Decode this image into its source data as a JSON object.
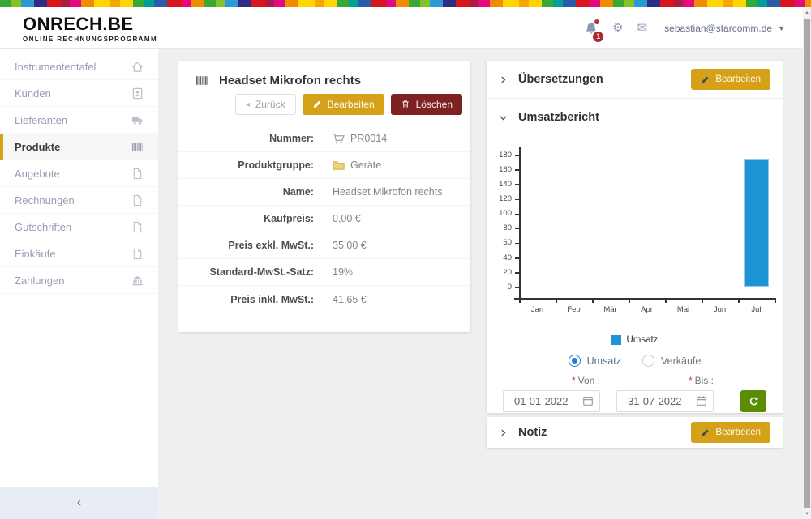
{
  "header": {
    "logo_title": "ONRECH.BE",
    "logo_subtitle": "ONLINE RECHNUNGSPROGRAMM",
    "notification_count": "1",
    "user_email": "sebastian@starcomm.de"
  },
  "sidebar": {
    "items": [
      {
        "label": "Instrumententafel",
        "icon": "home-icon",
        "active": false
      },
      {
        "label": "Kunden",
        "icon": "address-book-icon",
        "active": false
      },
      {
        "label": "Lieferanten",
        "icon": "truck-icon",
        "active": false
      },
      {
        "label": "Produkte",
        "icon": "barcode-icon",
        "active": true
      },
      {
        "label": "Angebote",
        "icon": "file-icon",
        "active": false
      },
      {
        "label": "Rechnungen",
        "icon": "file-icon",
        "active": false
      },
      {
        "label": "Gutschriften",
        "icon": "file-icon",
        "active": false
      },
      {
        "label": "Einkäufe",
        "icon": "file-icon",
        "active": false
      },
      {
        "label": "Zahlungen",
        "icon": "bank-icon",
        "active": false
      }
    ],
    "collapse_label": "‹"
  },
  "product": {
    "title": "Headset Mikrofon rechts",
    "back_label": "Zurück",
    "edit_label": "Bearbeiten",
    "delete_label": "Löschen",
    "details": [
      {
        "label": "Nummer:",
        "value": "PR0014",
        "icon": "cart-icon"
      },
      {
        "label": "Produktgruppe:",
        "value": "Geräte",
        "icon": "folder-icon"
      },
      {
        "label": "Name:",
        "value": "Headset Mikrofon rechts"
      },
      {
        "label": "Kaufpreis:",
        "value": "0,00 €"
      },
      {
        "label": "Preis exkl. MwSt.:",
        "value": "35,00 €"
      },
      {
        "label": "Standard-MwSt.-Satz:",
        "value": "19%"
      },
      {
        "label": "Preis inkl. MwSt.:",
        "value": "41,65 €"
      }
    ]
  },
  "panels": {
    "translations": {
      "title": "Übersetzungen",
      "edit_label": "Bearbeiten"
    },
    "sales_report": {
      "title": "Umsatzbericht",
      "radios": [
        {
          "label": "Umsatz",
          "selected": true
        },
        {
          "label": "Verkäufe",
          "selected": false
        }
      ],
      "from": {
        "required_mark": "*",
        "label": "Von :",
        "value": "01-01-2022"
      },
      "to": {
        "required_mark": "*",
        "label": "Bis :",
        "value": "31-07-2022"
      }
    },
    "note": {
      "title": "Notiz",
      "edit_label": "Bearbeiten"
    }
  },
  "chart_data": {
    "type": "bar",
    "title": "",
    "xlabel": "",
    "ylabel": "",
    "categories": [
      "Jan",
      "Feb",
      "Mär",
      "Apr",
      "Mai",
      "Jun",
      "Jul"
    ],
    "series": [
      {
        "name": "Umsatz",
        "values": [
          0,
          0,
          0,
          0,
          0,
          0,
          175
        ]
      }
    ],
    "yticks": [
      0,
      20,
      40,
      60,
      80,
      100,
      120,
      140,
      160,
      180
    ],
    "ylim": [
      -15,
      190
    ],
    "grid": false,
    "legend_position": "bottom",
    "bar_color": "#1e93d2"
  },
  "colors": {
    "accent_gold": "#d5a118",
    "danger_red": "#7e2122",
    "action_green": "#5a8c04",
    "bar_blue": "#1e93d2",
    "badge_red": "#a92b31"
  }
}
